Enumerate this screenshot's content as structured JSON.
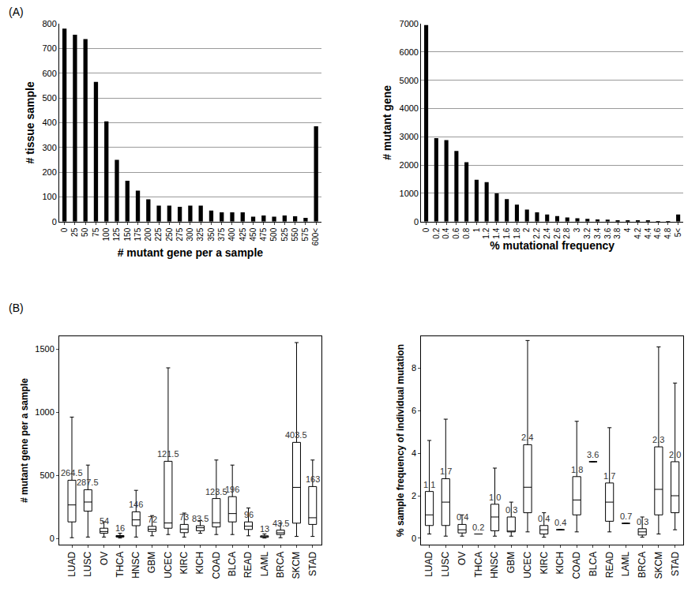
{
  "chart_data": [
    {
      "type": "bar",
      "annotations": [
        "(A)"
      ],
      "x_label": "# mutant gene per a sample",
      "y_label": "# tissue sample",
      "categories": [
        "0",
        "25",
        "50",
        "75",
        "100",
        "125",
        "150",
        "175",
        "200",
        "225",
        "250",
        "275",
        "300",
        "325",
        "350",
        "375",
        "400",
        "425",
        "450",
        "475",
        "500",
        "525",
        "550",
        "575",
        "600<"
      ],
      "values": [
        780,
        755,
        738,
        565,
        405,
        250,
        165,
        125,
        90,
        65,
        65,
        60,
        65,
        65,
        45,
        38,
        38,
        38,
        20,
        25,
        20,
        25,
        22,
        15,
        385
      ],
      "color": "#000000",
      "ylim": [
        0,
        800
      ],
      "yticks": [
        0,
        100,
        200,
        300,
        400,
        500,
        600,
        700,
        800
      ],
      "grid": true
    },
    {
      "type": "bar",
      "x_label": "% mutational frequency",
      "y_label": "# mutant gene",
      "categories": [
        "0",
        "0.2",
        "0.4",
        "0.6",
        "0.8",
        "1",
        "1.2",
        "1.4",
        "1.6",
        "1.8",
        "2",
        "2.2",
        "2.4",
        "2.6",
        "2.8",
        "3",
        "3.2",
        "3.4",
        "3.6",
        "3.8",
        "4",
        "4.2",
        "4.4",
        "4.6",
        "4.8",
        "5<"
      ],
      "values": [
        6950,
        2950,
        2880,
        2500,
        2100,
        1480,
        1400,
        1000,
        800,
        600,
        430,
        330,
        250,
        200,
        150,
        120,
        100,
        80,
        70,
        50,
        40,
        30,
        25,
        20,
        15,
        250
      ],
      "color": "#000000",
      "ylim": [
        0,
        7000
      ],
      "yticks": [
        0,
        1000,
        2000,
        3000,
        4000,
        5000,
        6000,
        7000
      ],
      "grid": true
    },
    {
      "type": "box",
      "annotations": [
        "(B)"
      ],
      "y_label": "# mutant gene per a sample",
      "categories": [
        "LUAD",
        "LUSC",
        "OV",
        "THCA",
        "HNSC",
        "GBM",
        "UCEC",
        "KIRC",
        "KICH",
        "COAD",
        "BLCA",
        "READ",
        "LAML",
        "BRCA",
        "SKCM",
        "STAD"
      ],
      "lowerfence": [
        5,
        10,
        10,
        2,
        10,
        20,
        30,
        10,
        40,
        30,
        30,
        20,
        2,
        5,
        15,
        15
      ],
      "q1": [
        130,
        215,
        40,
        10,
        100,
        55,
        80,
        45,
        60,
        90,
        130,
        70,
        8,
        30,
        120,
        110
      ],
      "median": [
        264.5,
        287.5,
        54,
        16,
        146,
        72,
        121.5,
        73,
        83.5,
        123.5,
        196,
        96,
        13,
        43.5,
        403.5,
        163
      ],
      "q3": [
        460,
        385,
        80,
        22,
        210,
        95,
        610,
        110,
        100,
        315,
        330,
        130,
        20,
        65,
        760,
        410
      ],
      "upperfence": [
        960,
        580,
        130,
        40,
        380,
        180,
        1350,
        200,
        140,
        620,
        580,
        240,
        35,
        120,
        1550,
        620
      ],
      "data_labels": true,
      "color": "#000000",
      "ylim": [
        -50,
        1600
      ],
      "yticks": [
        0,
        500,
        1000,
        1500
      ],
      "grid": false
    },
    {
      "type": "box",
      "y_label": "% sample frequency of individual mutation",
      "categories": [
        "LUAD",
        "LUSC",
        "OV",
        "THCA",
        "HNSC",
        "GBM",
        "UCEC",
        "KIRC",
        "KICH",
        "COAD",
        "BLCA",
        "READ",
        "LAML",
        "BRCA",
        "SKCM",
        "STAD"
      ],
      "lowerfence": [
        0.2,
        0.1,
        0.1,
        0.2,
        0.1,
        0.1,
        0.3,
        0.05,
        0.4,
        0.3,
        3.6,
        0.3,
        0.7,
        0.05,
        0.2,
        0.4
      ],
      "q1": [
        0.6,
        0.6,
        0.25,
        0.2,
        0.35,
        0.3,
        1.2,
        0.2,
        0.4,
        1.1,
        3.6,
        0.8,
        0.7,
        0.15,
        1.1,
        1.2
      ],
      "median": [
        1.1,
        1.7,
        0.4,
        0.2,
        1.0,
        0.3,
        2.4,
        0.4,
        0.4,
        1.8,
        3.6,
        1.7,
        0.7,
        0.3,
        2.3,
        2.0
      ],
      "value_labels": [
        "1.1",
        "1.7",
        "0.4",
        "0.2",
        "1.0",
        "0.3",
        "2.4",
        "0.4",
        "0.4",
        "1.8",
        "3.6",
        "1.7",
        "0.7",
        "0.3",
        "2.3",
        "2.0"
      ],
      "q3": [
        2.2,
        2.8,
        0.65,
        0.2,
        1.6,
        1.0,
        4.4,
        0.6,
        0.4,
        2.9,
        3.6,
        2.6,
        0.7,
        0.45,
        4.3,
        3.6
      ],
      "upperfence": [
        4.6,
        5.6,
        1.1,
        0.2,
        3.3,
        1.7,
        9.3,
        1.2,
        0.4,
        5.5,
        3.6,
        5.2,
        0.7,
        1.0,
        9.0,
        7.3
      ],
      "data_labels": true,
      "color": "#000000",
      "ylim": [
        -0.3,
        9.5
      ],
      "yticks": [
        0,
        2,
        4,
        6,
        8
      ],
      "grid": false
    }
  ]
}
